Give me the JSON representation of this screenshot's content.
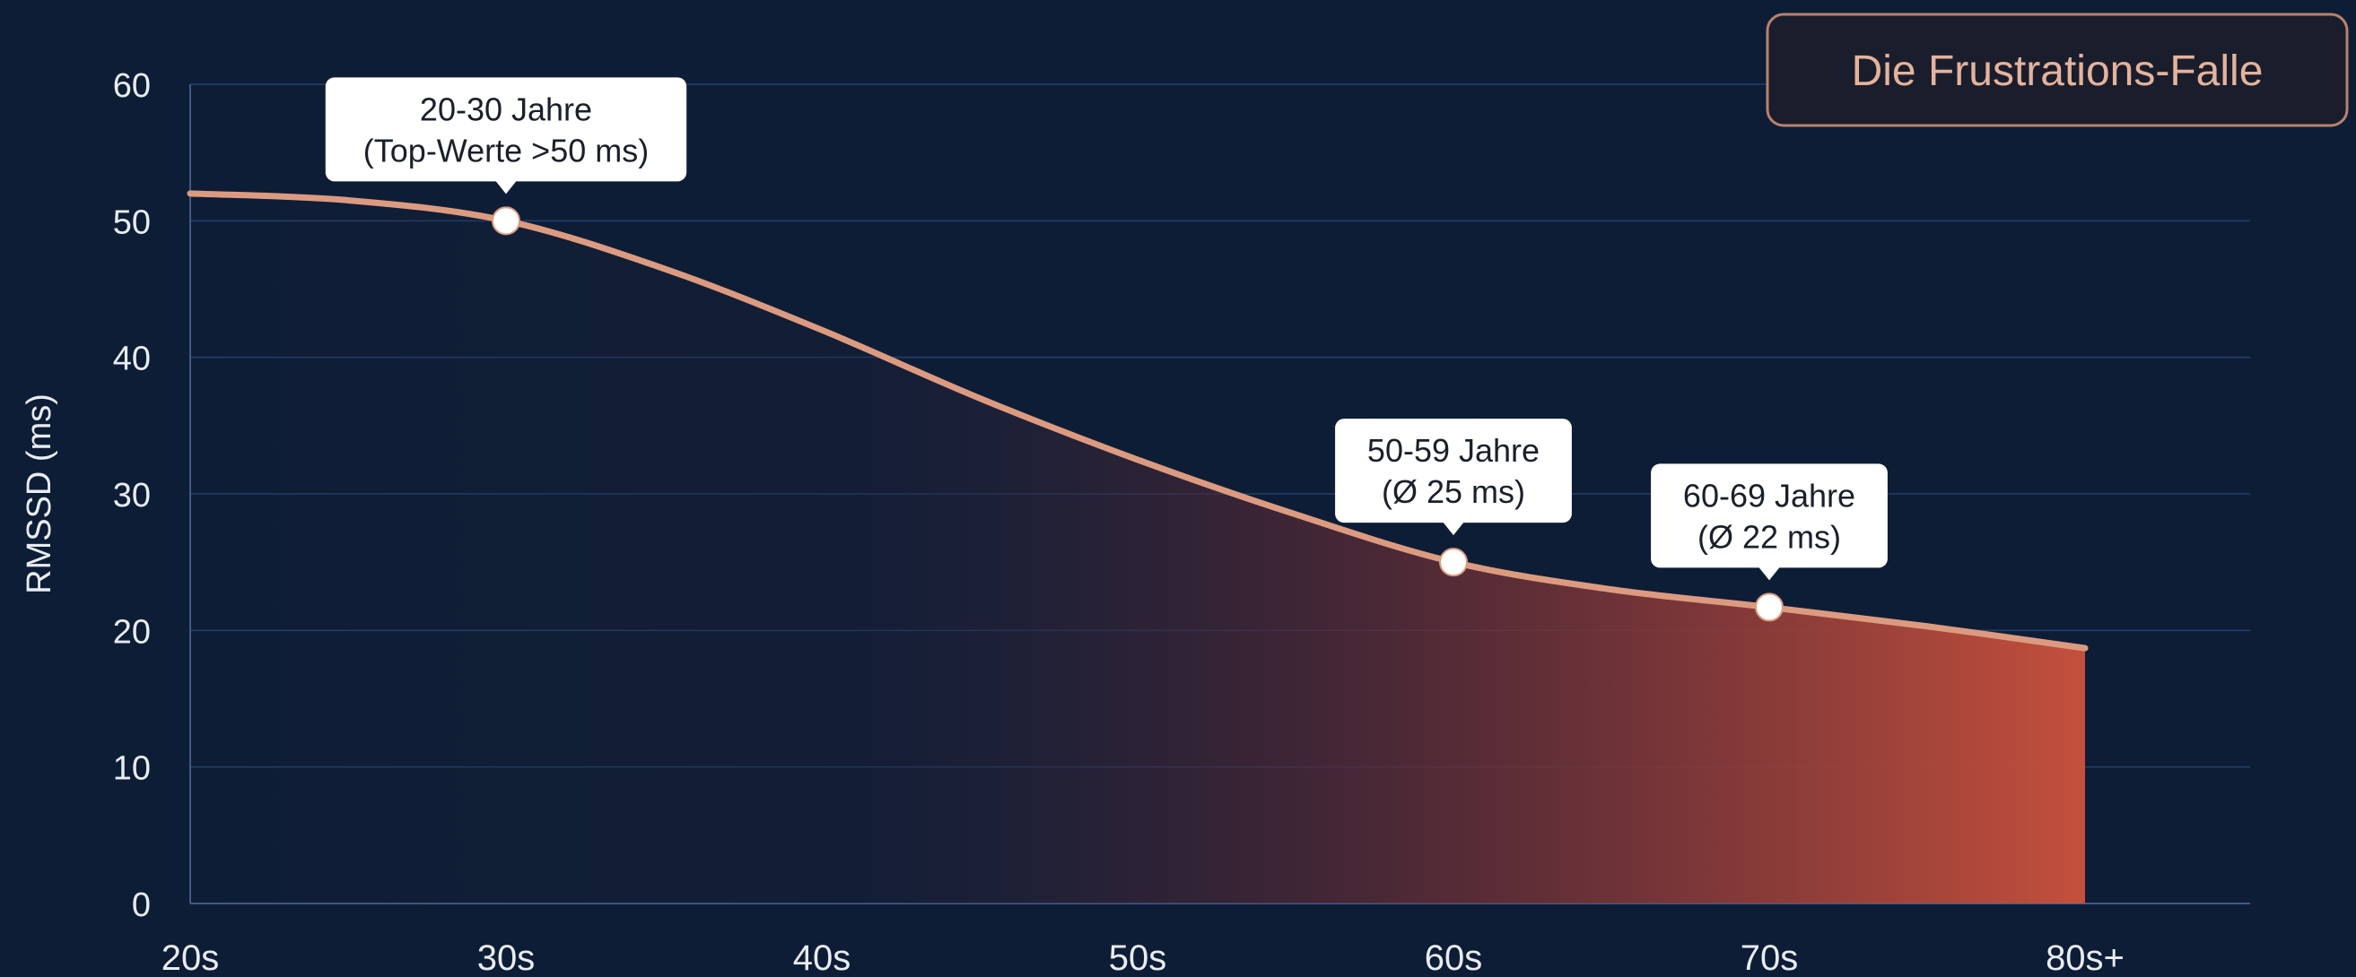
{
  "badge": {
    "label": "Die Frustrations-Falle"
  },
  "colors": {
    "background": "#0e1d36",
    "line": "#dc9b80",
    "area_start": "#1b2035",
    "area_end": "#c4503c",
    "grid": "#24406b",
    "axis": "#3d5a8a",
    "text": "#e8ecf3",
    "badge_border": "#b8826b",
    "badge_text": "#e4b39c"
  },
  "chart_data": {
    "type": "area",
    "title": "",
    "xlabel": "",
    "ylabel": "RMSSD (ms)",
    "categories": [
      "20s",
      "30s",
      "40s",
      "50s",
      "60s",
      "70s",
      "80s+"
    ],
    "ylim": [
      0,
      60
    ],
    "yticks": [
      0,
      10,
      20,
      30,
      40,
      50,
      60
    ],
    "grid": true,
    "series": [
      {
        "x": [
          0,
          0.5,
          1,
          1.5,
          2,
          2.5,
          3,
          3.5,
          4,
          4.5,
          5,
          5.5,
          6
        ],
        "values": [
          52,
          51.5,
          50,
          46.5,
          42,
          37,
          32.5,
          28.5,
          25,
          23,
          21.7,
          20.3,
          18.7
        ]
      }
    ],
    "markers": [
      {
        "x": 1,
        "y": 50,
        "label_lines": [
          "20-30 Jahre",
          "(Top-Werte >50 ms)"
        ]
      },
      {
        "x": 4,
        "y": 25,
        "label_lines": [
          "50-59 Jahre",
          "(Ø 25 ms)"
        ]
      },
      {
        "x": 5,
        "y": 21.7,
        "label_lines": [
          "60-69 Jahre",
          "(Ø 22 ms)"
        ]
      }
    ]
  }
}
